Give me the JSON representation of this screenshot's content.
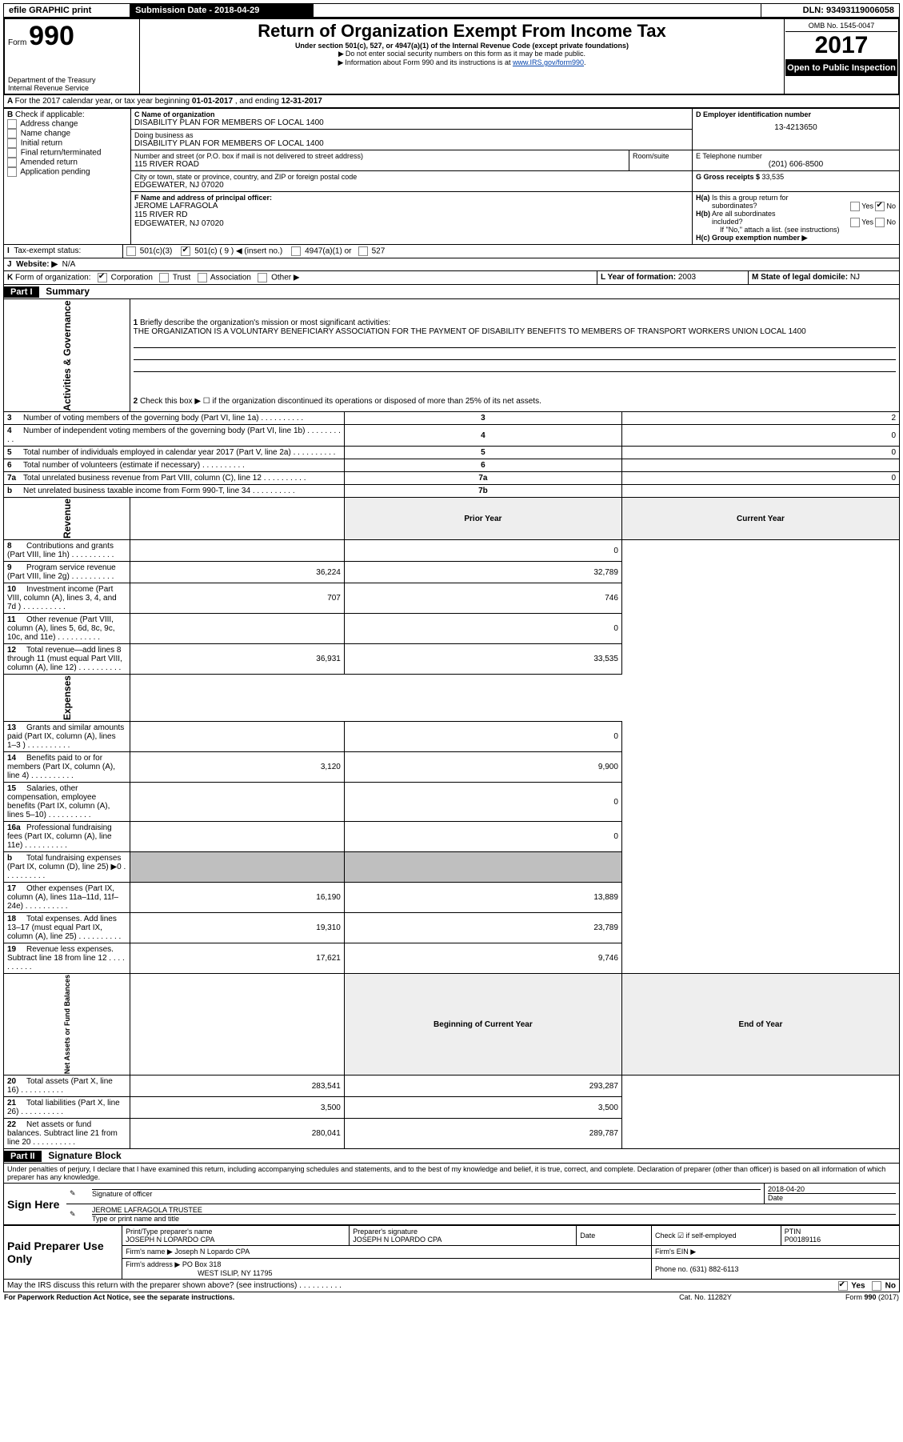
{
  "topbar": {
    "efile": "efile GRAPHIC print",
    "sub_label": "Submission Date - ",
    "sub_date": "2018-04-29",
    "dln_label": "DLN: ",
    "dln": "93493119006058"
  },
  "header": {
    "form_prefix": "Form",
    "form_num": "990",
    "dept": "Department of the Treasury",
    "irs": "Internal Revenue Service",
    "title": "Return of Organization Exempt From Income Tax",
    "subtitle": "Under section 501(c), 527, or 4947(a)(1) of the Internal Revenue Code (except private foundations)",
    "note1": "Do not enter social security numbers on this form as it may be made public.",
    "note2_a": "Information about Form 990 and its instructions is at ",
    "note2_link": "www.IRS.gov/form990",
    "omb": "OMB No. 1545-0047",
    "year": "2017",
    "open": "Open to Public Inspection"
  },
  "A": {
    "text_a": "For the 2017 calendar year, or tax year beginning ",
    "begin": "01-01-2017",
    "text_b": " , and ending ",
    "end": "12-31-2017"
  },
  "B": {
    "label": "Check if applicable:",
    "opts": [
      "Address change",
      "Name change",
      "Initial return",
      "Final return/terminated",
      "Amended return",
      "Application pending"
    ]
  },
  "C": {
    "name_lbl": "C Name of organization",
    "name": "DISABILITY PLAN FOR MEMBERS OF LOCAL 1400",
    "dba_lbl": "Doing business as",
    "dba": "DISABILITY PLAN FOR MEMBERS OF LOCAL 1400",
    "addr_lbl": "Number and street (or P.O. box if mail is not delivered to street address)",
    "room_lbl": "Room/suite",
    "addr": "115 RIVER ROAD",
    "city_lbl": "City or town, state or province, country, and ZIP or foreign postal code",
    "city": "EDGEWATER, NJ  07020"
  },
  "D": {
    "lbl": "D Employer identification number",
    "val": "13-4213650"
  },
  "E": {
    "lbl": "E Telephone number",
    "val": "(201) 606-8500"
  },
  "G": {
    "lbl": "G Gross receipts $ ",
    "val": "33,535"
  },
  "F": {
    "lbl": "F  Name and address of principal officer:",
    "name": "JEROME LAFRAGOLA",
    "addr1": "115 RIVER RD",
    "addr2": "EDGEWATER, NJ  07020"
  },
  "H": {
    "a_lbl": "H(a)  Is this a group return for subordinates?",
    "b_lbl": "H(b)  Are all subordinates included?",
    "b_note": "If \"No,\" attach a list. (see instructions)",
    "c_lbl": "H(c)  Group exemption number ▶",
    "yes": "Yes",
    "no": "No"
  },
  "I": {
    "lbl": "Tax-exempt status:",
    "o1": "501(c)(3)",
    "o2": "501(c) ( 9 ) ◀ (insert no.)",
    "o3": "4947(a)(1) or",
    "o4": "527"
  },
  "J": {
    "lbl": "Website: ▶",
    "val": "N/A"
  },
  "K": {
    "lbl": "Form of organization:",
    "o": [
      "Corporation",
      "Trust",
      "Association",
      "Other ▶"
    ]
  },
  "L": {
    "lbl": "L Year of formation: ",
    "val": "2003"
  },
  "M": {
    "lbl": "M State of legal domicile: ",
    "val": "NJ"
  },
  "partI": {
    "label": "Part I",
    "title": "Summary",
    "side_ag": "Activities & Governance",
    "side_rev": "Revenue",
    "side_exp": "Expenses",
    "side_na": "Net Assets or Fund Balances",
    "l1_lbl": "Briefly describe the organization's mission or most significant activities:",
    "l1_txt": "THE ORGANIZATION IS A VOLUNTARY BENEFICIARY ASSOCIATION FOR THE PAYMENT OF DISABILITY BENEFITS TO MEMBERS OF TRANSPORT WORKERS UNION LOCAL 1400",
    "l2": "Check this box ▶ ☐  if the organization discontinued its operations or disposed of more than 25% of its net assets.",
    "rows_ag": [
      {
        "n": "3",
        "txt": "Number of voting members of the governing body (Part VI, line 1a)",
        "box": "3",
        "val": "2"
      },
      {
        "n": "4",
        "txt": "Number of independent voting members of the governing body (Part VI, line 1b)",
        "box": "4",
        "val": "0"
      },
      {
        "n": "5",
        "txt": "Total number of individuals employed in calendar year 2017 (Part V, line 2a)",
        "box": "5",
        "val": "0"
      },
      {
        "n": "6",
        "txt": "Total number of volunteers (estimate if necessary)",
        "box": "6",
        "val": ""
      },
      {
        "n": "7a",
        "txt": "Total unrelated business revenue from Part VIII, column (C), line 12",
        "box": "7a",
        "val": "0"
      },
      {
        "n": "b",
        "txt": "Net unrelated business taxable income from Form 990-T, line 34",
        "box": "7b",
        "val": ""
      }
    ],
    "col_py": "Prior Year",
    "col_cy": "Current Year",
    "rows_rev": [
      {
        "n": "8",
        "txt": "Contributions and grants (Part VIII, line 1h)",
        "py": "",
        "cy": "0"
      },
      {
        "n": "9",
        "txt": "Program service revenue (Part VIII, line 2g)",
        "py": "36,224",
        "cy": "32,789"
      },
      {
        "n": "10",
        "txt": "Investment income (Part VIII, column (A), lines 3, 4, and 7d )",
        "py": "707",
        "cy": "746"
      },
      {
        "n": "11",
        "txt": "Other revenue (Part VIII, column (A), lines 5, 6d, 8c, 9c, 10c, and 11e)",
        "py": "",
        "cy": "0"
      },
      {
        "n": "12",
        "txt": "Total revenue—add lines 8 through 11 (must equal Part VIII, column (A), line 12)",
        "py": "36,931",
        "cy": "33,535"
      }
    ],
    "rows_exp": [
      {
        "n": "13",
        "txt": "Grants and similar amounts paid (Part IX, column (A), lines 1–3 )",
        "py": "",
        "cy": "0"
      },
      {
        "n": "14",
        "txt": "Benefits paid to or for members (Part IX, column (A), line 4)",
        "py": "3,120",
        "cy": "9,900"
      },
      {
        "n": "15",
        "txt": "Salaries, other compensation, employee benefits (Part IX, column (A), lines 5–10)",
        "py": "",
        "cy": "0"
      },
      {
        "n": "16a",
        "txt": "Professional fundraising fees (Part IX, column (A), line 11e)",
        "py": "",
        "cy": "0"
      },
      {
        "n": "b",
        "txt": "Total fundraising expenses (Part IX, column (D), line 25) ▶0",
        "py": "GREY",
        "cy": "GREY"
      },
      {
        "n": "17",
        "txt": "Other expenses (Part IX, column (A), lines 11a–11d, 11f–24e)",
        "py": "16,190",
        "cy": "13,889"
      },
      {
        "n": "18",
        "txt": "Total expenses. Add lines 13–17 (must equal Part IX, column (A), line 25)",
        "py": "19,310",
        "cy": "23,789"
      },
      {
        "n": "19",
        "txt": "Revenue less expenses. Subtract line 18 from line 12",
        "py": "17,621",
        "cy": "9,746"
      }
    ],
    "col_boy": "Beginning of Current Year",
    "col_eoy": "End of Year",
    "rows_na": [
      {
        "n": "20",
        "txt": "Total assets (Part X, line 16)",
        "py": "283,541",
        "cy": "293,287"
      },
      {
        "n": "21",
        "txt": "Total liabilities (Part X, line 26)",
        "py": "3,500",
        "cy": "3,500"
      },
      {
        "n": "22",
        "txt": "Net assets or fund balances. Subtract line 21 from line 20",
        "py": "280,041",
        "cy": "289,787"
      }
    ]
  },
  "partII": {
    "label": "Part II",
    "title": "Signature Block",
    "decl": "Under penalties of perjury, I declare that I have examined this return, including accompanying schedules and statements, and to the best of my knowledge and belief, it is true, correct, and complete. Declaration of preparer (other than officer) is based on all information of which preparer has any knowledge.",
    "sign_here": "Sign Here",
    "sig_off": "Signature of officer",
    "date_lbl": "Date",
    "date": "2018-04-20",
    "off_name": "JEROME LAFRAGOLA  TRUSTEE",
    "off_type": "Type or print name and title",
    "paid": "Paid Preparer Use Only",
    "prep_name_lbl": "Print/Type preparer's name",
    "prep_name": "JOSEPH N LOPARDO CPA",
    "prep_sig_lbl": "Preparer's signature",
    "prep_sig": "JOSEPH N LOPARDO CPA",
    "date2": "Date",
    "chk_se": "Check ☑ if self-employed",
    "ptin_lbl": "PTIN",
    "ptin": "P00189116",
    "firm_name_lbl": "Firm's name      ▶",
    "firm_name": "Joseph N Lopardo CPA",
    "firm_ein_lbl": "Firm's EIN ▶",
    "firm_addr_lbl": "Firm's address ▶",
    "firm_addr": "PO Box 318",
    "firm_city": "WEST ISLIP, NY  11795",
    "firm_phone_lbl": "Phone no. ",
    "firm_phone": "(631) 882-6113",
    "discuss": "May the IRS discuss this return with the preparer shown above? (see instructions)",
    "yes": "Yes",
    "no": "No"
  },
  "footer": {
    "pra": "For Paperwork Reduction Act Notice, see the separate instructions.",
    "cat": "Cat. No. 11282Y",
    "form": "Form 990 (2017)"
  }
}
